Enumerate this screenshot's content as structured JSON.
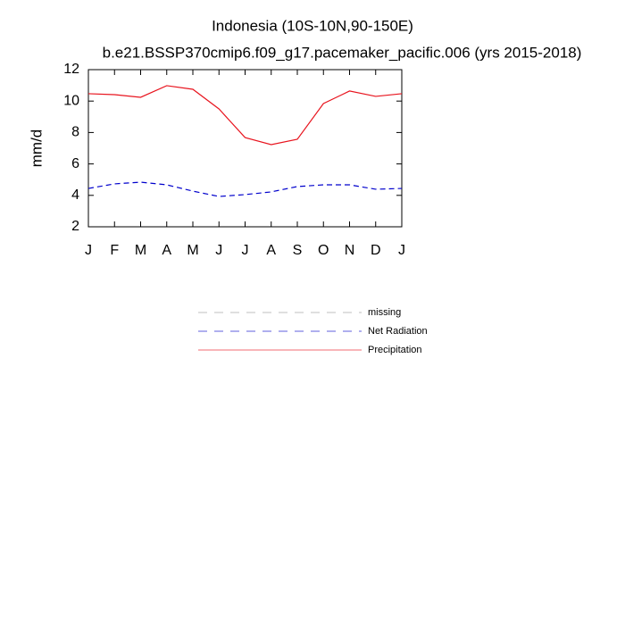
{
  "chart_data": {
    "type": "line",
    "title": "Indonesia (10S-10N,90-150E)",
    "subtitle": "b.e21.BSSP370cmip6.f09_g17.pacemaker_pacific.006 (yrs 2015-2018)",
    "y_label": "mm/d",
    "categories": [
      "J",
      "F",
      "M",
      "A",
      "M",
      "J",
      "J",
      "A",
      "S",
      "O",
      "N",
      "D",
      "J"
    ],
    "series": [
      {
        "name": "missing",
        "color": "#999999",
        "dash": true,
        "values": [
          null,
          null,
          null,
          null,
          null,
          null,
          null,
          null,
          null,
          null,
          null,
          null,
          null
        ]
      },
      {
        "name": "Net Radiation",
        "color": "#0000cc",
        "dash": true,
        "values": [
          4.44,
          4.73,
          4.84,
          4.67,
          4.27,
          3.93,
          4.05,
          4.22,
          4.56,
          4.67,
          4.67,
          4.39,
          4.44
        ]
      },
      {
        "name": "Precipitation",
        "color": "#e8141e",
        "dash": false,
        "values": [
          10.47,
          10.41,
          10.24,
          10.98,
          10.75,
          9.5,
          7.68,
          7.23,
          7.57,
          9.84,
          10.64,
          10.3,
          10.47
        ]
      }
    ],
    "ylim": [
      2,
      12
    ],
    "yticks": [
      2,
      4,
      6,
      8,
      10,
      12
    ]
  }
}
